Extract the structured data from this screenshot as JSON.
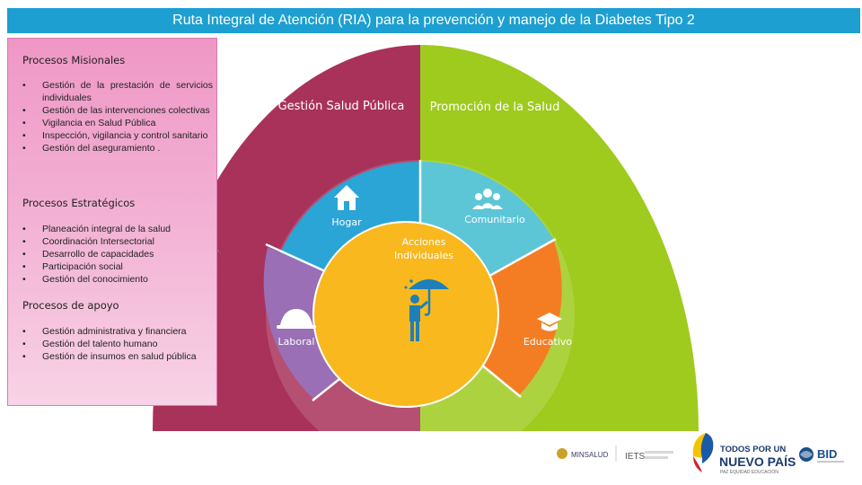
{
  "title": "Ruta Integral de Atención (RIA) para la prevención y manejo de la Diabetes Tipo 2",
  "colors": {
    "title_bar": "#1d9fd2",
    "gestion_salud_publica": "#a8325a",
    "promocion_salud": "#9fca1e",
    "hogar": "#2aa5d6",
    "comunitario": "#5cc6d7",
    "laboral": "#9a6fb5",
    "educativo": "#f47d24",
    "acciones_individuales": "#f8b81e"
  },
  "panel": {
    "misionales": {
      "heading": "Procesos Misionales",
      "items": [
        "Gestión de la prestación de servicios individuales",
        "Gestión de las intervenciones colectivas",
        "Vigilancia en Salud Pública",
        "Inspección, vigilancia y control sanitario",
        "Gestión del aseguramiento ."
      ]
    },
    "estrategicos": {
      "heading": "Procesos Estratégicos",
      "items": [
        "Planeación integral de la salud",
        "Coordinación Intersectorial",
        "Desarrollo de capacidades",
        "Participación social",
        "Gestión del conocimiento"
      ]
    },
    "apoyo": {
      "heading": "Procesos de apoyo",
      "items": [
        "Gestión administrativa y financiera",
        "Gestión del talento humano",
        "Gestión de insumos en salud pública"
      ]
    }
  },
  "diagram": {
    "gestion_salud_publica": "Gestión Salud Pública",
    "promocion_salud": "Promoción de la Salud",
    "hogar": "Hogar",
    "comunitario": "Comunitario",
    "laboral": "Laboral",
    "educativo": "Educativo",
    "acciones_line1": "Acciones",
    "acciones_line2": "Individuales"
  },
  "logos": {
    "minsalud": "MINSALUD",
    "iets": "IETS",
    "todos_line1": "TODOS POR UN",
    "todos_line2": "NUEVO PAÍS",
    "todos_line3": "PAZ EQUIDAD EDUCACIÓN",
    "bid": "BID"
  }
}
